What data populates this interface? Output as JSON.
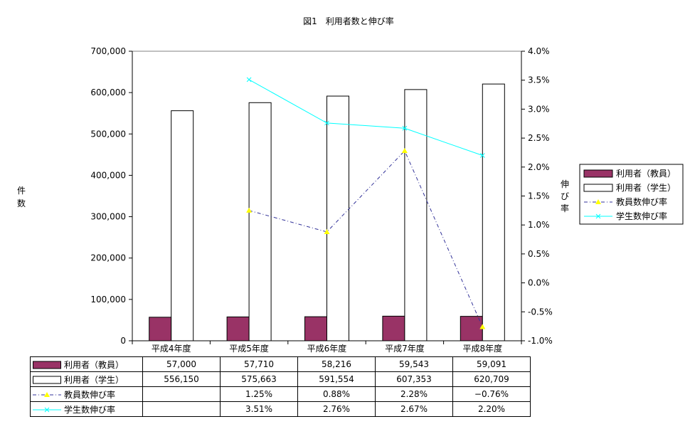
{
  "title": "図1　利用者数と伸び率",
  "y_left_label": "件数",
  "y_right_label": "伸び率",
  "chart_data": {
    "type": "bar",
    "categories": [
      "平成4年度",
      "平成5年度",
      "平成6年度",
      "平成7年度",
      "平成8年度"
    ],
    "y_left_ticks": [
      "0",
      "100,000",
      "200,000",
      "300,000",
      "400,000",
      "500,000",
      "600,000",
      "700,000"
    ],
    "y_right_ticks": [
      "-1.0%",
      "-0.5%",
      "0.0%",
      "0.5%",
      "1.0%",
      "1.5%",
      "2.0%",
      "2.5%",
      "3.0%",
      "3.5%",
      "4.0%"
    ],
    "ylim_left": [
      0,
      700000
    ],
    "ylim_right": [
      -1.0,
      4.0
    ],
    "grid": false,
    "legend": "right",
    "series": [
      {
        "name": "利用者（教員）",
        "kind": "bar",
        "axis": "left",
        "color": "#993366",
        "values": [
          57000,
          57710,
          58216,
          59543,
          59091
        ],
        "labels": [
          "57,000",
          "57,710",
          "58,216",
          "59,543",
          "59,091"
        ]
      },
      {
        "name": "利用者（学生）",
        "kind": "bar",
        "axis": "left",
        "color": "#ffffff",
        "values": [
          556150,
          575663,
          591554,
          607353,
          620709
        ],
        "labels": [
          "556,150",
          "575,663",
          "591,554",
          "607,353",
          "620,709"
        ]
      },
      {
        "name": "教員数伸び率",
        "kind": "line",
        "axis": "right",
        "color": "#333399",
        "marker": "triangle",
        "marker_color": "#ffff00",
        "values": [
          null,
          1.25,
          0.88,
          2.28,
          -0.76
        ],
        "labels": [
          "",
          "1.25%",
          "0.88%",
          "2.28%",
          "−0.76%"
        ]
      },
      {
        "name": "学生数伸び率",
        "kind": "line",
        "axis": "right",
        "color": "#00ffff",
        "marker": "x",
        "values": [
          null,
          3.51,
          2.76,
          2.67,
          2.2
        ],
        "labels": [
          "",
          "3.51%",
          "2.76%",
          "2.67%",
          "2.20%"
        ]
      }
    ]
  }
}
